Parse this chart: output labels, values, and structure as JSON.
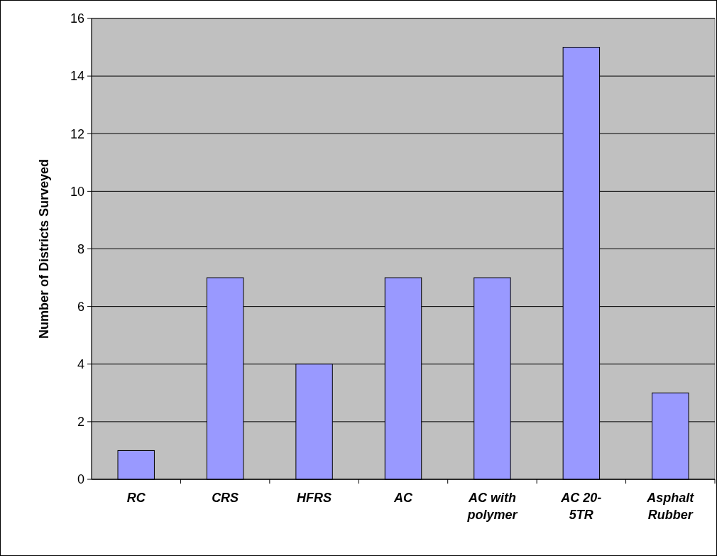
{
  "chart_data": {
    "type": "bar",
    "ylabel": "Number of Districts Surveyed",
    "categories": [
      "RC",
      "CRS",
      "HFRS",
      "AC",
      "AC with polymer",
      "AC 20-5TR",
      "Asphalt Rubber"
    ],
    "values": [
      1,
      7,
      4,
      7,
      7,
      15,
      3
    ],
    "color": "#9999ff",
    "ylim": [
      0,
      16
    ],
    "yticks": [
      0,
      2,
      4,
      6,
      8,
      10,
      12,
      14,
      16
    ],
    "grid": "y"
  }
}
